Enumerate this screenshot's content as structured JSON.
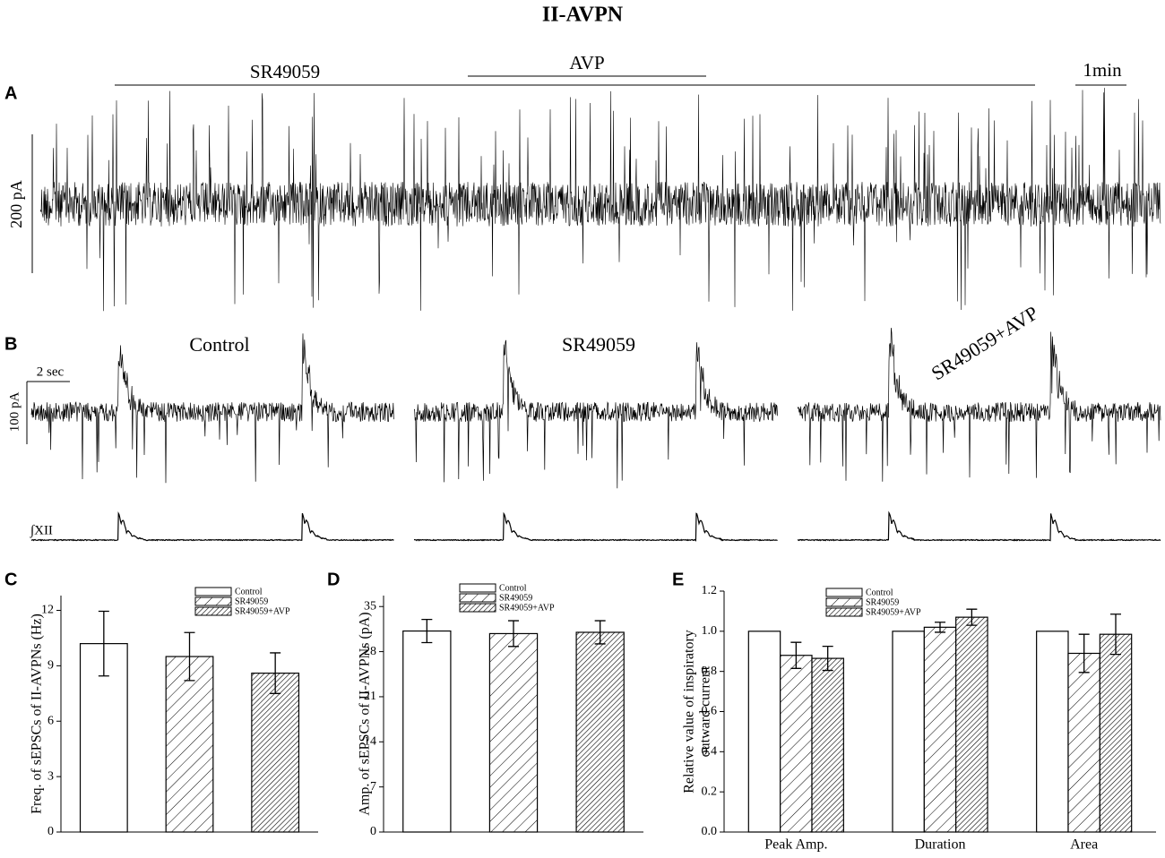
{
  "title": "II-AVPN",
  "panel_a": {
    "label": "A",
    "drugs": [
      "SR49059",
      "AVP"
    ],
    "time_scale": "1min",
    "current_scale": "200 pA"
  },
  "panel_b": {
    "label": "B",
    "conditions": [
      "Control",
      "SR49059",
      "SR49059+AVP"
    ],
    "time_scale": "2 sec",
    "current_scale": "100 pA",
    "integrated_label": "∫XII"
  },
  "chart_data": [
    {
      "panel": "C",
      "type": "bar",
      "ylabel": "Freq. of sEPSCs of II-AVPNs (Hz)",
      "ylim": [
        0,
        12.8
      ],
      "yticks": [
        0,
        3,
        6,
        9,
        12
      ],
      "series": [
        {
          "name": "Control",
          "hatch": "none",
          "values": [
            10.2
          ],
          "errors": [
            1.75
          ]
        },
        {
          "name": "SR49059",
          "hatch": "sparse",
          "values": [
            9.5
          ],
          "errors": [
            1.3
          ]
        },
        {
          "name": "SR49059+AVP",
          "hatch": "dense",
          "values": [
            8.6
          ],
          "errors": [
            1.1
          ]
        }
      ]
    },
    {
      "panel": "D",
      "type": "bar",
      "ylabel": "Amp. of sEPSCs of II-AVPNs (pA)",
      "ylim": [
        0,
        36.7
      ],
      "yticks": [
        0,
        7,
        14,
        21,
        28,
        35
      ],
      "series": [
        {
          "name": "Control",
          "hatch": "none",
          "values": [
            31.2
          ],
          "errors": [
            1.8
          ]
        },
        {
          "name": "SR49059",
          "hatch": "sparse",
          "values": [
            30.8
          ],
          "errors": [
            2.0
          ]
        },
        {
          "name": "SR49059+AVP",
          "hatch": "dense",
          "values": [
            31.0
          ],
          "errors": [
            1.8
          ]
        }
      ]
    },
    {
      "panel": "E",
      "type": "bar",
      "ylabel": [
        "Relative value of inspiratory",
        "outward current"
      ],
      "ylim": [
        0,
        1.2
      ],
      "yticks": [
        {
          "value": 0,
          "label": "0.0"
        },
        {
          "value": 0.2,
          "label": "0.2"
        },
        {
          "value": 0.4,
          "label": "0.4"
        },
        {
          "value": 0.6,
          "label": "0.6"
        },
        {
          "value": 0.8,
          "label": "0.8"
        },
        {
          "value": 1,
          "label": "1.0"
        },
        {
          "value": 1.2,
          "label": "1.2"
        }
      ],
      "categories": [
        "Peak Amp.",
        "Duration",
        "Area"
      ],
      "series": [
        {
          "name": "Control",
          "hatch": "none",
          "values": [
            1,
            1,
            1
          ],
          "errors": [
            0,
            0,
            0
          ]
        },
        {
          "name": "SR49059",
          "hatch": "sparse",
          "values": [
            0.88,
            1.02,
            0.89
          ],
          "errors": [
            0.065,
            0.025,
            0.095
          ]
        },
        {
          "name": "SR49059+AVP",
          "hatch": "dense",
          "values": [
            0.865,
            1.07,
            0.985
          ],
          "errors": [
            0.06,
            0.04,
            0.1
          ]
        }
      ]
    }
  ]
}
